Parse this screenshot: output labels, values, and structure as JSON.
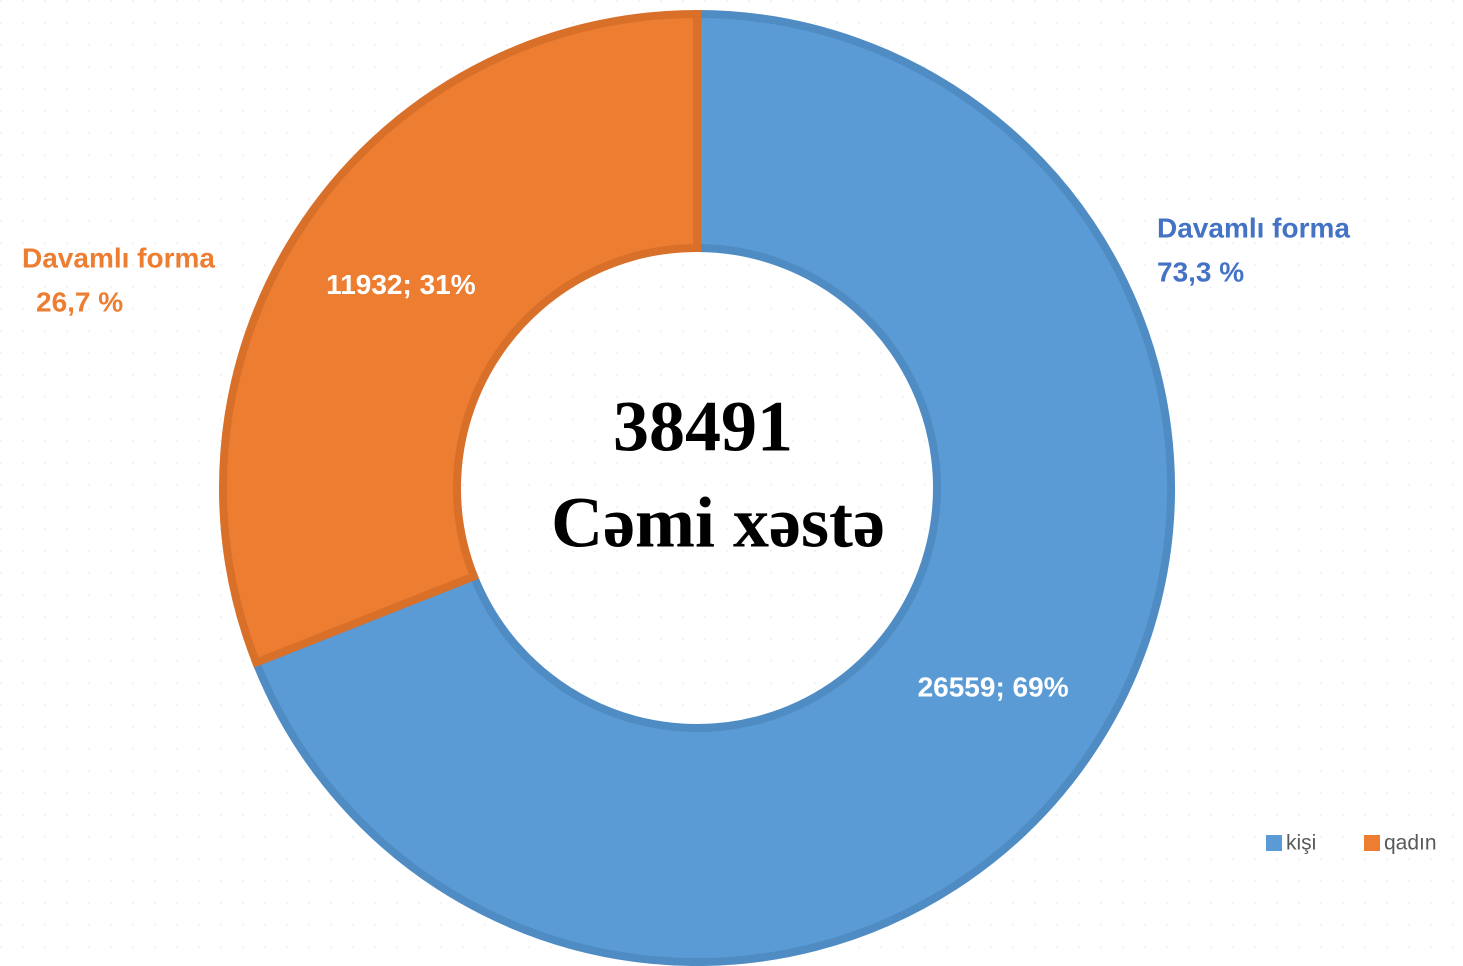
{
  "chart_data": {
    "type": "donut",
    "categories": [
      "kişi",
      "qadın"
    ],
    "values": [
      26559,
      11932
    ],
    "value_labels": [
      "26559; 69%",
      "11932; 31%"
    ],
    "colors": [
      "#5b9bd5",
      "#ed7d31"
    ],
    "total": 38491,
    "total_label": "Cəmi xəstə",
    "annotations": [
      {
        "lines": [
          "Davamlı forma",
          "73,3 %"
        ],
        "color": "#4472c4"
      },
      {
        "lines": [
          "Davamlı forma",
          "26,7 %"
        ],
        "color": "#ed7d31"
      }
    ],
    "legend": "bottom-right"
  }
}
